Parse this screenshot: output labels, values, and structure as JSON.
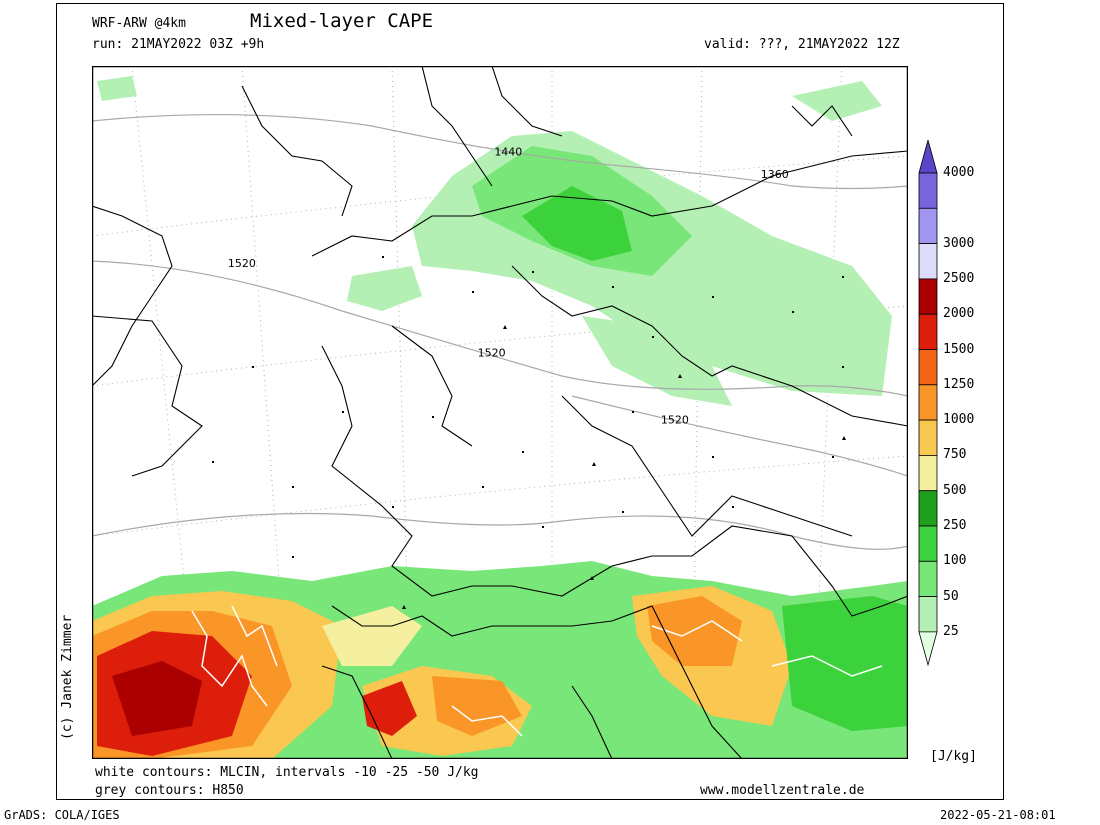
{
  "header": {
    "model": "WRF-ARW @4km",
    "title": "Mixed-layer CAPE",
    "run": "run: 21MAY2022 03Z +9h",
    "valid": "valid: ???, 21MAY2022 12Z"
  },
  "footer": {
    "white_contours": "white contours: MLCIN, intervals -10 -25 -50 J/kg",
    "grey_contours": "grey contours: H850",
    "website": "www.modellzentrale.de",
    "grads": "GrADS: COLA/IGES",
    "timestamp": "2022-05-21-08:01",
    "copyright": "(c) Janek Zimmer"
  },
  "map": {
    "contour_labels": [
      {
        "text": "1440",
        "lon": 13.5,
        "lat": 54.5
      },
      {
        "text": "1360",
        "lon": 21.5,
        "lat": 54.0
      },
      {
        "text": "1520",
        "lon": 5.5,
        "lat": 52.0
      },
      {
        "text": "1520",
        "lon": 13.0,
        "lat": 50.0
      },
      {
        "text": "1520",
        "lon": 18.5,
        "lat": 48.5
      }
    ]
  },
  "colorbar": {
    "unit": "[J/kg]",
    "levels": [
      "25",
      "50",
      "100",
      "250",
      "500",
      "750",
      "1000",
      "1250",
      "1500",
      "2000",
      "2500",
      "3000",
      "4000"
    ],
    "colors": [
      "#e1ffe1",
      "#b4f0b4",
      "#78e678",
      "#3cd23c",
      "#1ea01e",
      "#f5f0a0",
      "#fac850",
      "#fa9628",
      "#f06414",
      "#dc1e0a",
      "#aa0000",
      "#dcdcfa",
      "#a096f0",
      "#7864dc",
      "#5a46c8"
    ]
  }
}
